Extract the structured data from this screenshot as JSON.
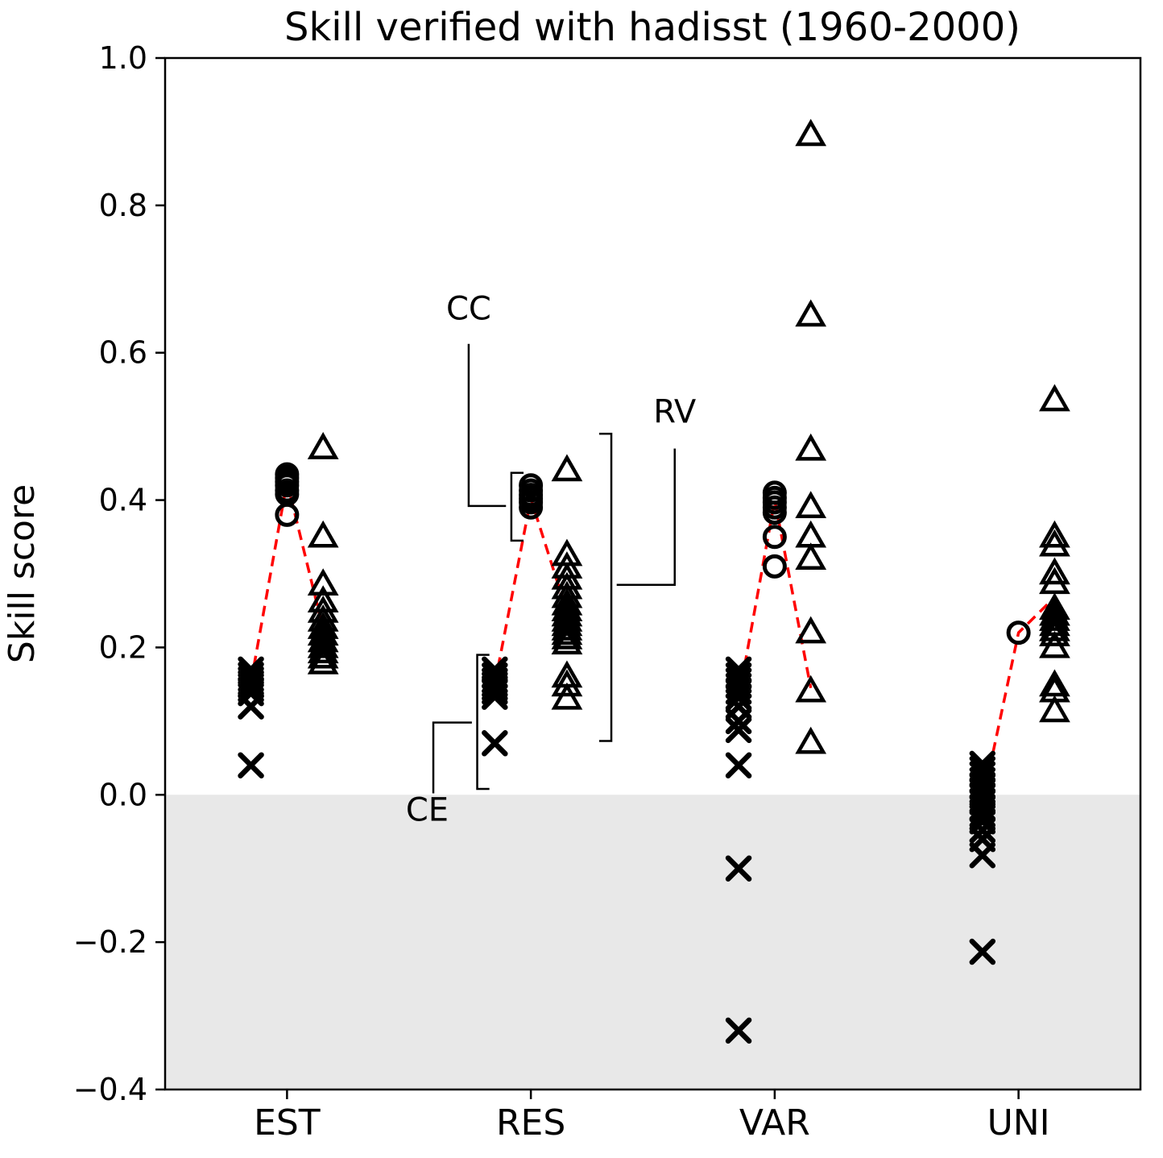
{
  "figure": {
    "background": "#ffffff"
  },
  "chart_data": {
    "type": "scatter",
    "title": "Skill verified with hadisst (1960-2000)",
    "ylabel": "Skill score",
    "xlabel": "",
    "ylim": [
      -0.4,
      1.0
    ],
    "grid": false,
    "legend": "annotated in-plot with brackets (CC, RV, CE)",
    "yticks": [
      {
        "value": 1.0,
        "label": "1.0"
      },
      {
        "value": 0.8,
        "label": "0.8"
      },
      {
        "value": 0.6,
        "label": "0.6"
      },
      {
        "value": 0.4,
        "label": "0.4"
      },
      {
        "value": 0.2,
        "label": "0.2"
      },
      {
        "value": 0.0,
        "label": "0.0"
      },
      {
        "value": -0.2,
        "label": "−0.2"
      },
      {
        "value": -0.4,
        "label": "−0.4"
      }
    ],
    "categories": [
      "EST",
      "RES",
      "VAR",
      "UNI"
    ],
    "shaded_region": {
      "from": -0.4,
      "to": 0.0,
      "color": "#e8e8e8"
    },
    "marker_series": {
      "CE": {
        "marker": "x",
        "offset": -0.148
      },
      "CC": {
        "marker": "circle",
        "offset": 0
      },
      "RV": {
        "marker": "triangle",
        "offset": 0.148
      }
    },
    "points": [
      {
        "category": "EST",
        "CE": [
          0.17,
          0.163,
          0.157,
          0.152,
          0.148,
          0.143,
          0.138,
          0.12,
          0.04
        ],
        "CC": [
          0.435,
          0.43,
          0.425,
          0.42,
          0.413,
          0.408,
          0.38
        ],
        "RV": [
          0.47,
          0.35,
          0.285,
          0.262,
          0.248,
          0.236,
          0.226,
          0.217,
          0.208,
          0.2,
          0.193,
          0.186,
          0.178
        ],
        "mean_line": [
          0.152,
          0.425,
          0.225
        ]
      },
      {
        "category": "RES",
        "CE": [
          0.17,
          0.162,
          0.155,
          0.15,
          0.145,
          0.14,
          0.133,
          0.07
        ],
        "CC": [
          0.42,
          0.413,
          0.407,
          0.402,
          0.397,
          0.39
        ],
        "RV": [
          0.44,
          0.325,
          0.308,
          0.293,
          0.28,
          0.268,
          0.258,
          0.25,
          0.243,
          0.236,
          0.23,
          0.224,
          0.218,
          0.212,
          0.205,
          0.16,
          0.148,
          0.13
        ],
        "mean_line": [
          0.15,
          0.402,
          0.248
        ]
      },
      {
        "category": "VAR",
        "CE": [
          0.17,
          0.162,
          0.155,
          0.148,
          0.14,
          0.132,
          0.12,
          0.1,
          0.088,
          0.04,
          -0.1,
          -0.32
        ],
        "CC": [
          0.41,
          0.403,
          0.397,
          0.39,
          0.383,
          0.35,
          0.31
        ],
        "RV": [
          0.895,
          0.65,
          0.468,
          0.39,
          0.35,
          0.32,
          0.22,
          0.14,
          0.07
        ],
        "mean_line": [
          0.13,
          0.4,
          0.145
        ]
      },
      {
        "category": "UNI",
        "CE": [
          0.042,
          0.035,
          0.028,
          0.02,
          0.012,
          0.005,
          -0.002,
          -0.01,
          -0.018,
          -0.027,
          -0.036,
          -0.048,
          -0.06,
          -0.082,
          -0.213
        ],
        "CC": [
          0.22
        ],
        "RV": [
          0.535,
          0.35,
          0.338,
          0.3,
          0.287,
          0.252,
          0.244,
          0.237,
          0.23,
          0.223,
          0.216,
          0.2,
          0.148,
          0.14,
          0.113
        ],
        "mean_line": [
          -0.01,
          0.22,
          0.268
        ]
      }
    ],
    "mean_line_style": {
      "color": "#ff0000",
      "dash": [
        13,
        8
      ],
      "width": 3.5
    },
    "annotations": [
      {
        "label": "CC",
        "x": 0.745,
        "y": 0.645,
        "connector": [
          [
            0.745,
            0.612
          ],
          [
            0.745,
            0.392
          ],
          [
            0.898,
            0.392
          ]
        ],
        "bracket": {
          "x": 0.92,
          "y1": 0.345,
          "y2": 0.437,
          "tick": 0.05
        }
      },
      {
        "label": "RV",
        "x": 1.59,
        "y": 0.505,
        "connector": [
          [
            1.59,
            0.47
          ],
          [
            1.59,
            0.285
          ],
          [
            1.352,
            0.285
          ]
        ],
        "bracket": {
          "x": 1.33,
          "y1": 0.073,
          "y2": 0.49,
          "tick": -0.05
        }
      },
      {
        "label": "CE",
        "x": 0.575,
        "y": -0.035,
        "connector": [
          [
            0.6,
            0.002
          ],
          [
            0.6,
            0.098
          ],
          [
            0.758,
            0.098
          ]
        ],
        "bracket": {
          "x": 0.78,
          "y1": 0.008,
          "y2": 0.19,
          "tick": 0.05
        }
      }
    ]
  }
}
